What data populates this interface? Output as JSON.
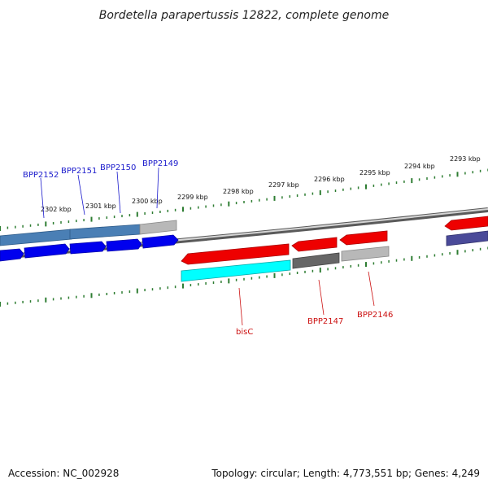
{
  "title": "Bordetella parapertussis 12822, complete genome",
  "footer": {
    "accession": "Accession: NC_002928",
    "summary": "Topology: circular; Length: 4,773,551 bp; Genes: 4,249"
  },
  "colors": {
    "backbone": "#888888",
    "ticks": "#2e7d32",
    "label_blue": "#1a1acc",
    "label_red": "#cc1111",
    "forward_dark": "#0000ee",
    "forward_steel": "#4a7fb5",
    "reverse_red": "#ee0000",
    "reverse_cyan": "#00ffff",
    "gray_light": "#b8b8b8",
    "gray_dark": "#666666",
    "navy": "#4a4a99"
  },
  "scale_labels": [
    "2302 kbp",
    "2301 kbp",
    "2300 kbp",
    "2299 kbp",
    "2298 kbp",
    "2297 kbp",
    "2296 kbp",
    "2295 kbp",
    "2294 kbp",
    "2293 kbp"
  ],
  "gene_labels": {
    "bpp2152": "BPP2152",
    "bpp2151": "BPP2151",
    "bpp2150": "BPP2150",
    "bpp2149": "BPP2149",
    "bisc": "bisC",
    "bpp2147": "BPP2147",
    "bpp2146": "BPP2146"
  }
}
